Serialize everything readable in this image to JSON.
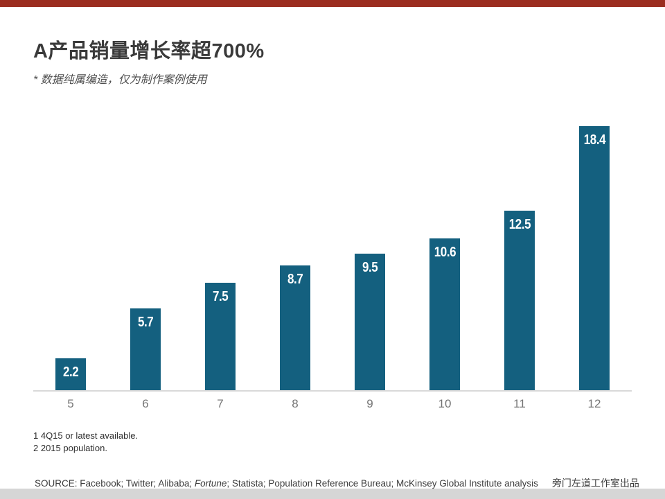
{
  "colors": {
    "accent_bar": "#9B2D1F",
    "bar_fill": "#14607F",
    "value_label": "#FFFFFF",
    "axis_line": "#D9D9D9",
    "bottom_strip": "#D6D6D6"
  },
  "header": {
    "title": "A产品销量增长率超700%",
    "subtitle": "* 数据纯属编造，仅为制作案例使用"
  },
  "chart_data": {
    "type": "bar",
    "categories": [
      "5",
      "6",
      "7",
      "8",
      "9",
      "10",
      "11",
      "12"
    ],
    "values": [
      2.2,
      5.7,
      7.5,
      8.7,
      9.5,
      10.6,
      12.5,
      18.4
    ],
    "value_labels": [
      "2.2",
      "5.7",
      "7.5",
      "8.7",
      "9.5",
      "10.6",
      "12.5",
      "18.4"
    ],
    "title": "A产品销量增长率超700%",
    "xlabel": "",
    "ylabel": "",
    "ylim": [
      0,
      19
    ],
    "grid": false,
    "legend": "none",
    "bar_color": "#14607F",
    "value_label_position": "inside-top"
  },
  "footnotes": [
    "1 4Q15 or latest available.",
    "2 2015 population."
  ],
  "footer": {
    "source_prefix": "SOURCE: Facebook; Twitter; Alibaba; ",
    "source_italic": "Fortune",
    "source_suffix": "; Statista; Population Reference Bureau; McKinsey Global Institute analysis",
    "credit": "旁门左道工作室出品"
  }
}
